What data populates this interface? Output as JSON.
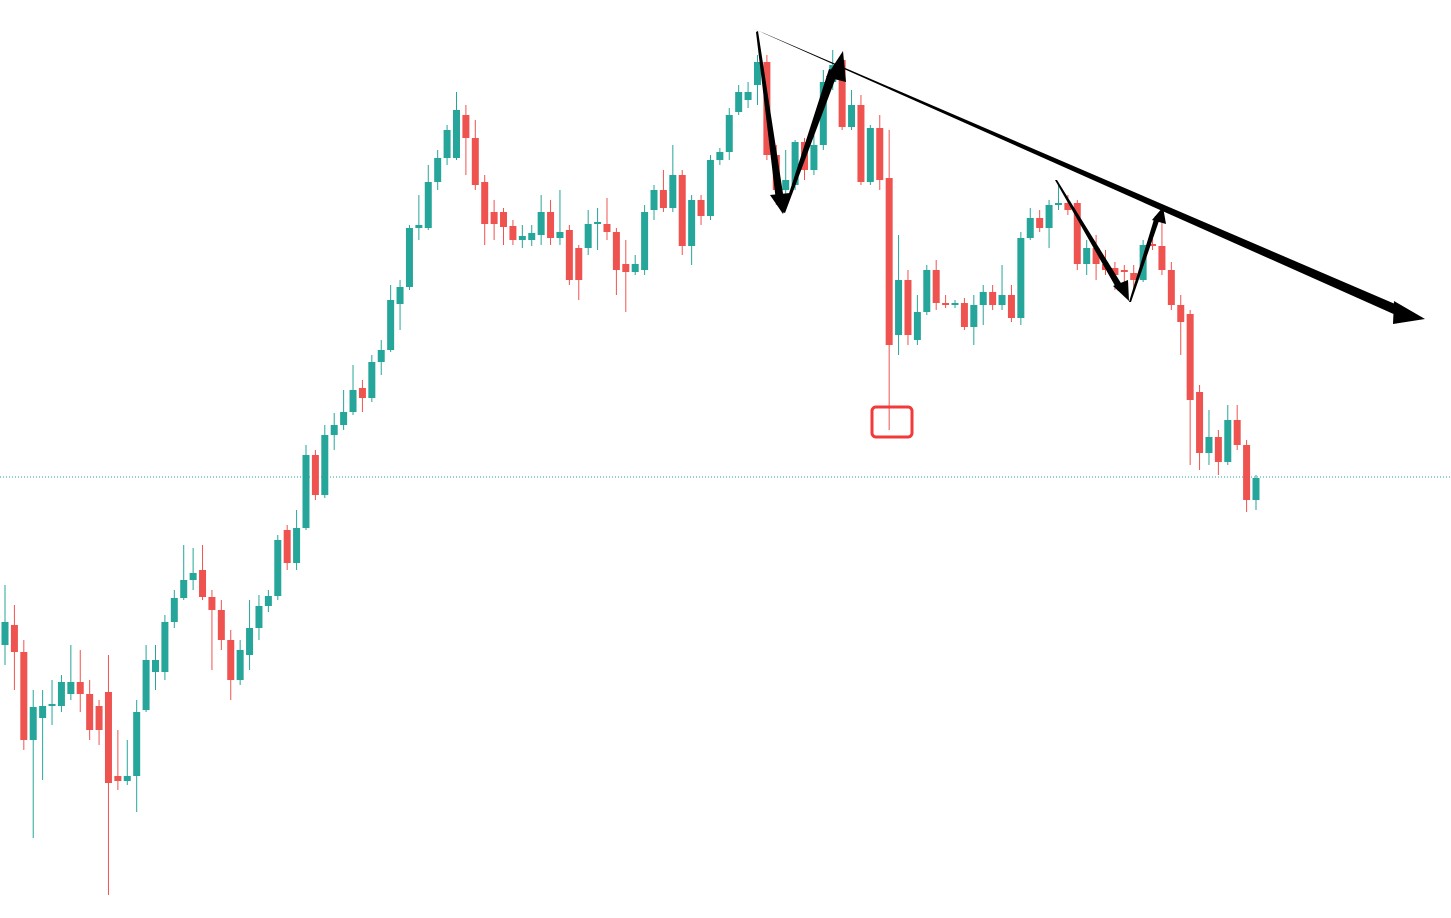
{
  "chart_data": {
    "type": "candlestick",
    "up_color": "#26a69a",
    "down_color": "#ef5350",
    "ylim": [
      82,
      1000
    ],
    "price_line": 523,
    "open": [
      355,
      375,
      348,
      260,
      282,
      294,
      294,
      306,
      318,
      306,
      294,
      308,
      224,
      219,
      224,
      290,
      328,
      328,
      378,
      402,
      420,
      430,
      403,
      390,
      360,
      320,
      345,
      372,
      394,
      404,
      470,
      437,
      472,
      545,
      505,
      565,
      575,
      588,
      612,
      602,
      638,
      650,
      696,
      713,
      772,
      772,
      818,
      842,
      842,
      885,
      862,
      818,
      788,
      788,
      774,
      760,
      760,
      765,
      788,
      762,
      770,
      752,
      752,
      776,
      776,
      768,
      736,
      728,
      730,
      790,
      810,
      792,
      825,
      754,
      800,
      784,
      840,
      848,
      888,
      900,
      915,
      938,
      845,
      810,
      815,
      858,
      830,
      855,
      918,
      940,
      873,
      895,
      818,
      872,
      822,
      665,
      720,
      660,
      688,
      730,
      697,
      695,
      697,
      673,
      695,
      708,
      695,
      705,
      682,
      762,
      782,
      772,
      795,
      797,
      797,
      736,
      752,
      736,
      732,
      730,
      727,
      720,
      756,
      754,
      730,
      695,
      686,
      608,
      547,
      563,
      538,
      580,
      555,
      500
    ],
    "high": [
      415,
      395,
      360,
      310,
      310,
      320,
      325,
      355,
      350,
      320,
      300,
      345,
      270,
      260,
      300,
      355,
      355,
      385,
      410,
      455,
      452,
      455,
      410,
      400,
      370,
      360,
      400,
      405,
      410,
      465,
      475,
      490,
      555,
      550,
      575,
      587,
      610,
      635,
      620,
      645,
      660,
      715,
      720,
      775,
      805,
      835,
      850,
      875,
      908,
      895,
      880,
      825,
      800,
      792,
      780,
      775,
      775,
      805,
      800,
      810,
      775,
      755,
      790,
      792,
      802,
      772,
      760,
      745,
      795,
      815,
      830,
      855,
      830,
      805,
      805,
      845,
      852,
      892,
      915,
      918,
      945,
      945,
      855,
      850,
      860,
      862,
      865,
      930,
      950,
      945,
      910,
      905,
      875,
      885,
      870,
      765,
      730,
      705,
      735,
      740,
      705,
      700,
      702,
      705,
      715,
      715,
      735,
      715,
      768,
      792,
      790,
      800,
      815,
      805,
      800,
      760,
      765,
      750,
      738,
      735,
      735,
      760,
      765,
      785,
      738,
      705,
      690,
      615,
      590,
      570,
      595,
      595,
      560,
      525
    ],
    "low": [
      335,
      310,
      250,
      162,
      220,
      275,
      288,
      300,
      288,
      260,
      255,
      105,
      210,
      215,
      188,
      288,
      310,
      320,
      372,
      400,
      410,
      400,
      330,
      350,
      300,
      315,
      330,
      360,
      388,
      400,
      430,
      430,
      470,
      500,
      502,
      550,
      570,
      585,
      588,
      598,
      625,
      648,
      670,
      710,
      760,
      770,
      810,
      835,
      840,
      825,
      810,
      755,
      760,
      755,
      755,
      752,
      754,
      755,
      755,
      755,
      715,
      700,
      745,
      750,
      760,
      705,
      688,
      725,
      725,
      780,
      788,
      788,
      745,
      735,
      775,
      780,
      835,
      840,
      885,
      892,
      895,
      840,
      795,
      800,
      810,
      820,
      825,
      850,
      910,
      870,
      870,
      815,
      815,
      810,
      570,
      645,
      655,
      655,
      685,
      690,
      692,
      692,
      670,
      655,
      675,
      690,
      690,
      678,
      675,
      760,
      768,
      752,
      790,
      785,
      730,
      725,
      720,
      725,
      710,
      715,
      710,
      718,
      750,
      725,
      690,
      645,
      535,
      530,
      535,
      525,
      535,
      550,
      488,
      490
    ],
    "close": [
      378,
      348,
      260,
      293,
      294,
      296,
      318,
      318,
      306,
      270,
      270,
      217,
      219,
      224,
      288,
      340,
      340,
      378,
      402,
      420,
      427,
      403,
      390,
      360,
      320,
      350,
      372,
      394,
      404,
      460,
      437,
      472,
      545,
      505,
      565,
      575,
      588,
      610,
      602,
      638,
      650,
      700,
      713,
      772,
      775,
      818,
      842,
      870,
      890,
      862,
      815,
      776,
      776,
      773,
      760,
      764,
      767,
      788,
      762,
      768,
      720,
      720,
      776,
      778,
      768,
      730,
      728,
      736,
      788,
      810,
      792,
      825,
      754,
      800,
      784,
      840,
      848,
      885,
      908,
      908,
      938,
      845,
      810,
      820,
      858,
      830,
      855,
      918,
      935,
      873,
      895,
      818,
      872,
      820,
      655,
      720,
      665,
      688,
      730,
      697,
      695,
      697,
      673,
      695,
      708,
      695,
      705,
      682,
      762,
      782,
      772,
      795,
      797,
      790,
      736,
      752,
      736,
      730,
      725,
      728,
      720,
      755,
      754,
      730,
      695,
      678,
      600,
      547,
      563,
      538,
      580,
      555,
      500,
      522
    ]
  }
}
